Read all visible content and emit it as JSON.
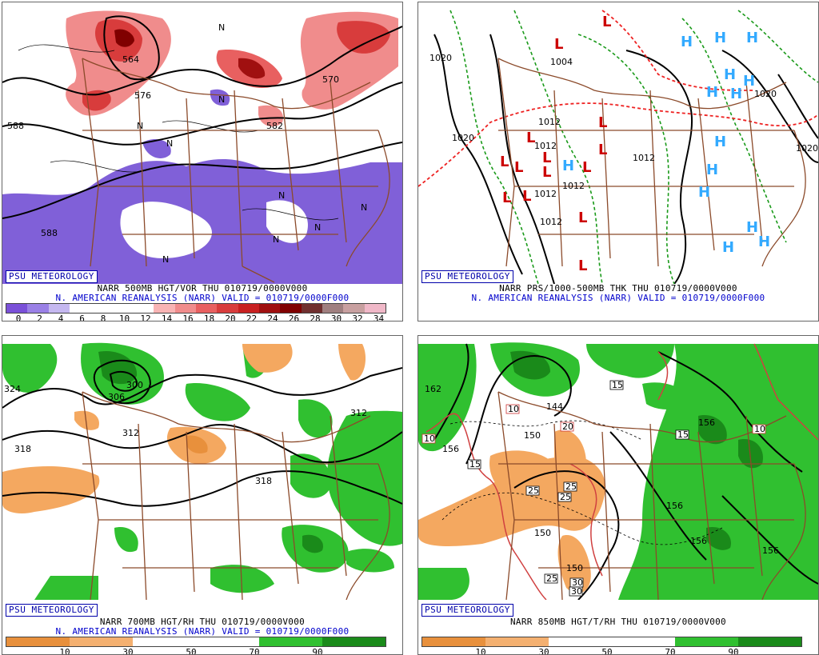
{
  "panels": [
    {
      "badge": "PSU METEOROLOGY",
      "title": "NARR 500MB HGT/VOR THU 010719/0000V000",
      "subtitle": "N. AMERICAN REANALYSIS (NARR) VALID = 010719/0000F000",
      "scale_ticks": [
        "0",
        "2",
        "4",
        "6",
        "8",
        "10",
        "12",
        "14",
        "16",
        "18",
        "20",
        "22",
        "24",
        "26",
        "28",
        "30",
        "32",
        "34"
      ],
      "contour_labels": [
        "588",
        "588",
        "576",
        "564",
        "570",
        "582"
      ],
      "markers": [
        "N"
      ]
    },
    {
      "badge": "PSU METEOROLOGY",
      "title": "NARR PRS/1000-500MB THK THU 010719/0000V000",
      "subtitle": "N. AMERICAN REANALYSIS (NARR) VALID = 010719/0000F000",
      "contour_labels": [
        "1020",
        "1020",
        "1012",
        "1012",
        "1012",
        "1004",
        "1012",
        "1020",
        "1012",
        "1012",
        "1020"
      ],
      "high_symbol": "H",
      "low_symbol": "L"
    },
    {
      "badge": "PSU METEOROLOGY",
      "title": "NARR 700MB HGT/RH THU 010719/0000V000",
      "subtitle": "N. AMERICAN REANALYSIS (NARR) VALID = 010719/0000F000",
      "scale_ticks": [
        "10",
        "30",
        "50",
        "70",
        "90"
      ],
      "contour_labels": [
        "324",
        "318",
        "306",
        "312",
        "300",
        "312",
        "318",
        "318"
      ]
    },
    {
      "badge": "PSU METEOROLOGY",
      "title": "NARR 850MB HGT/T/RH THU 010719/0000V000",
      "scale_ticks": [
        "10",
        "30",
        "50",
        "70",
        "90"
      ],
      "contour_labels": [
        "162",
        "156",
        "144",
        "150",
        "150",
        "156",
        "156",
        "156",
        "150",
        "156"
      ],
      "temp_labels": [
        "10",
        "10",
        "20",
        "15",
        "15",
        "15",
        "10",
        "25",
        "25",
        "25",
        "25",
        "30",
        "30",
        "10"
      ]
    }
  ],
  "colors": {
    "vor_scale": [
      "#7a50d8",
      "#9a80e6",
      "#c5b8f0",
      "#ffffff",
      "#ffffff",
      "#ffffff",
      "#ffffff",
      "#f8b4b4",
      "#f08c8c",
      "#e86060",
      "#d83c3c",
      "#c82020",
      "#a01010",
      "#800000",
      "#703030",
      "#a08080",
      "#c8a0a0",
      "#f0b8c8"
    ],
    "rh_scale": [
      "#e8903c",
      "#f4b070",
      "#ffffff",
      "#ffffff",
      "#30c030",
      "#1a8a1a"
    ],
    "state_lines": "#8b4a2a",
    "contour": "#000000",
    "high": "#33aaff",
    "low": "#cc0000",
    "thickness_green": "#1a9a1a",
    "thickness_red": "#ee2222"
  }
}
